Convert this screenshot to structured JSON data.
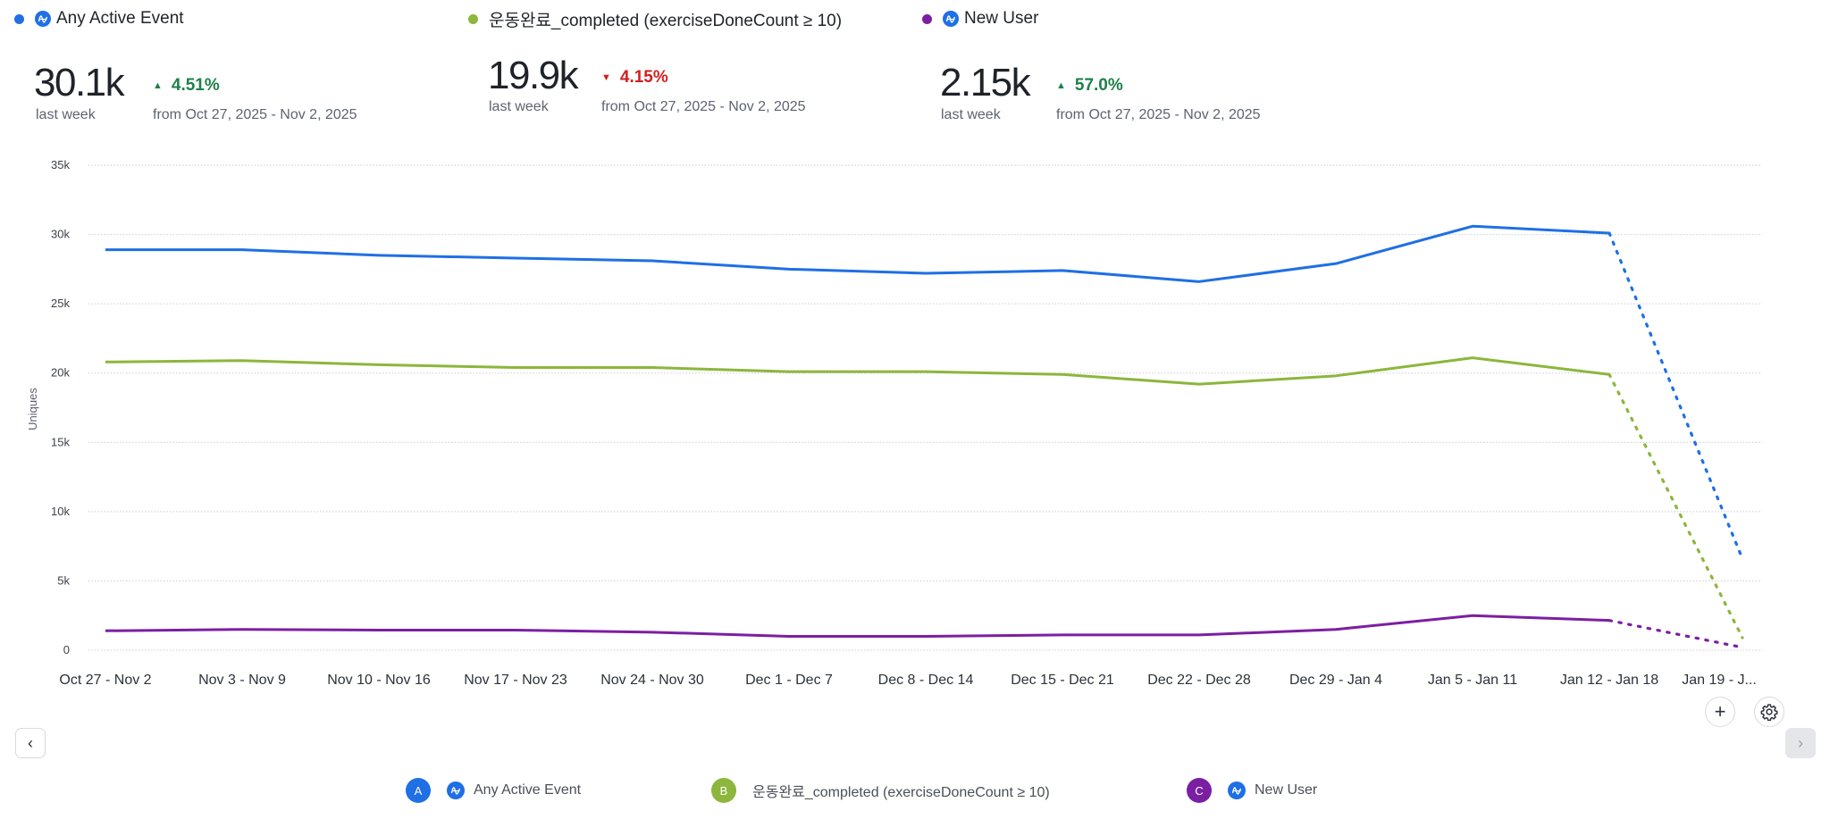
{
  "metrics": [
    {
      "label": "Any Active Event",
      "has_amp_icon": true,
      "color": "#1f6fe5",
      "value": "30.1k",
      "period_label": "last week",
      "change": "4.51%",
      "direction": "up",
      "comparison": "from Oct 27, 2025 - Nov 2, 2025"
    },
    {
      "label": "운동완료_completed (exerciseDoneCount ≥ 10)",
      "has_amp_icon": false,
      "color": "#8cb63c",
      "value": "19.9k",
      "period_label": "last week",
      "change": "4.15%",
      "direction": "down",
      "comparison": "from Oct 27, 2025 - Nov 2, 2025"
    },
    {
      "label": "New User",
      "has_amp_icon": true,
      "color": "#7b1fa2",
      "value": "2.15k",
      "period_label": "last week",
      "change": "57.0%",
      "direction": "up",
      "comparison": "from Oct 27, 2025 - Nov 2, 2025"
    }
  ],
  "chart_data": {
    "type": "line",
    "title": "",
    "xlabel": "",
    "ylabel": "Uniques",
    "ylim": [
      0,
      35000
    ],
    "yticks": [
      0,
      5000,
      10000,
      15000,
      20000,
      25000,
      30000,
      35000
    ],
    "ytick_labels": [
      "0",
      "5k",
      "10k",
      "15k",
      "20k",
      "25k",
      "30k",
      "35k"
    ],
    "grid": true,
    "categories": [
      "Oct 27 - Nov 2",
      "Nov 3 - Nov 9",
      "Nov 10 - Nov 16",
      "Nov 17 - Nov 23",
      "Nov 24 - Nov 30",
      "Dec 1 - Dec 7",
      "Dec 8 - Dec 14",
      "Dec 15 - Dec 21",
      "Dec 22 - Dec 28",
      "Dec 29 - Jan 4",
      "Jan 5 - Jan 11",
      "Jan 12 - Jan 18",
      "Jan 19 - J..."
    ],
    "incomplete_last_period": true,
    "series": [
      {
        "name": "Any Active Event",
        "color": "#1f6fe5",
        "values": [
          28900,
          28900,
          28500,
          28300,
          28100,
          27500,
          27200,
          27400,
          26600,
          27900,
          30600,
          30100,
          6600
        ]
      },
      {
        "name": "운동완료_completed (exerciseDoneCount ≥ 10)",
        "color": "#8cb63c",
        "values": [
          20800,
          20900,
          20600,
          20400,
          20400,
          20100,
          20100,
          19900,
          19200,
          19800,
          21100,
          19900,
          900
        ]
      },
      {
        "name": "New User",
        "color": "#7b1fa2",
        "values": [
          1400,
          1500,
          1450,
          1450,
          1300,
          1000,
          1000,
          1100,
          1100,
          1500,
          2500,
          2150,
          200
        ]
      }
    ],
    "legend": "bottom"
  },
  "controls": {
    "add_label": "+",
    "settings_icon": "gear-icon",
    "prev_icon": "‹",
    "next_icon": "›"
  },
  "bottom_legend": [
    {
      "badge": "A",
      "label": "Any Active Event",
      "has_amp_icon": true,
      "color": "#1f6fe5"
    },
    {
      "badge": "B",
      "label": "운동완료_completed (exerciseDoneCount ≥ 10)",
      "has_amp_icon": false,
      "color": "#8cb63c"
    },
    {
      "badge": "C",
      "label": "New User",
      "has_amp_icon": true,
      "color": "#7b1fa2"
    }
  ]
}
